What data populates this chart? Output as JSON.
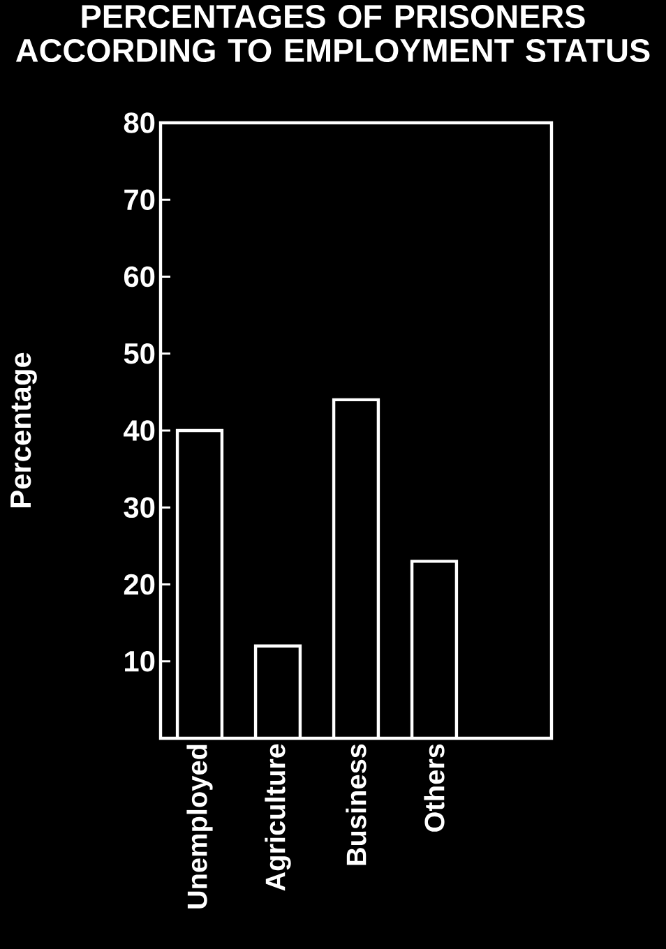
{
  "chart_data": {
    "type": "bar",
    "title": "PERCENTAGES OF PRISONERS ACCORDING TO EMPLOYMENT STATUS",
    "ylabel": "Percentage",
    "categories": [
      "Unemployed",
      "Agriculture",
      "Business",
      "Others",
      null
    ],
    "values": [
      40,
      12,
      44,
      23,
      null
    ],
    "color": "#000000",
    "ylim": [
      0,
      80
    ],
    "yticks": [
      10,
      20,
      30,
      40,
      50,
      60,
      70,
      80
    ]
  }
}
